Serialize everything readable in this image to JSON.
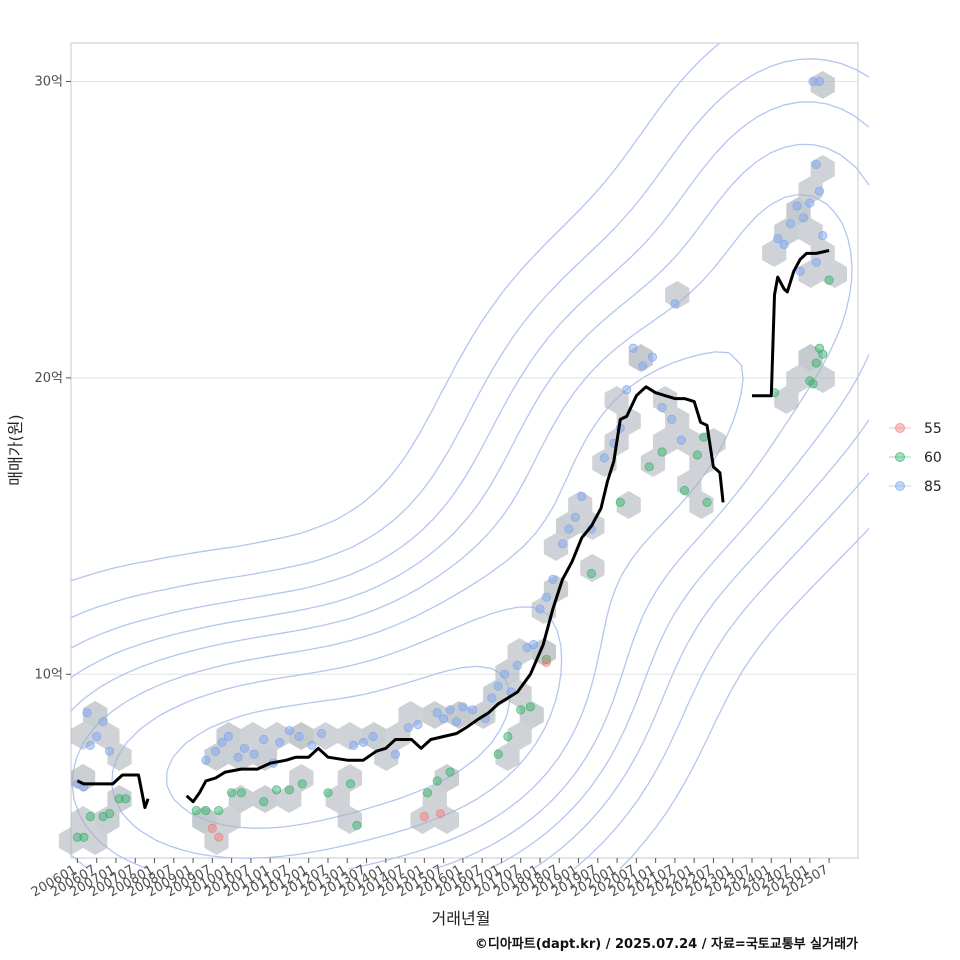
{
  "chart_data": {
    "type": "scatter",
    "xlabel": "거래년월",
    "ylabel": "매매가(원)",
    "caption": "©디아파트(dapt.kr) / 2025.07.24 / 자료=국토교통부 실거래가",
    "x_domain": [
      "2005-11",
      "2026-04"
    ],
    "y_range_eok": [
      3.8,
      31.3
    ],
    "y_ticks": [
      {
        "value": 10,
        "label": "10억"
      },
      {
        "value": 20,
        "label": "20억"
      },
      {
        "value": 30,
        "label": "30억"
      }
    ],
    "x_ticks": [
      "200601",
      "200607",
      "200701",
      "200707",
      "200801",
      "200807",
      "200901",
      "200907",
      "201001",
      "201007",
      "201101",
      "201107",
      "201201",
      "201207",
      "201301",
      "201307",
      "201401",
      "201407",
      "201501",
      "201507",
      "201601",
      "201607",
      "201701",
      "201707",
      "201801",
      "201807",
      "201901",
      "201907",
      "202001",
      "202007",
      "202101",
      "202107",
      "202201",
      "202207",
      "202301",
      "202307",
      "202401",
      "202407",
      "202501",
      "202507"
    ],
    "grid": true,
    "legend_position": "right",
    "legend": [
      {
        "label": "55",
        "color": "#f08080"
      },
      {
        "label": "60",
        "color": "#3cb371"
      },
      {
        "label": "85",
        "color": "#7fa6f0"
      }
    ],
    "series": [
      {
        "name": "85",
        "color": "#7fa6f0",
        "points": [
          [
            "2006-01",
            6.3
          ],
          [
            "2006-03",
            6.2
          ],
          [
            "2006-05",
            7.6
          ],
          [
            "2006-07",
            7.9
          ],
          [
            "2006-09",
            8.4
          ],
          [
            "2006-11",
            7.4
          ],
          [
            "2006-04",
            8.7
          ],
          [
            "2009-05",
            7.1
          ],
          [
            "2009-08",
            7.4
          ],
          [
            "2009-10",
            7.7
          ],
          [
            "2009-12",
            7.9
          ],
          [
            "2010-03",
            7.2
          ],
          [
            "2010-05",
            7.5
          ],
          [
            "2010-08",
            7.3
          ],
          [
            "2010-11",
            7.8
          ],
          [
            "2011-02",
            7.0
          ],
          [
            "2011-04",
            7.7
          ],
          [
            "2011-07",
            8.1
          ],
          [
            "2011-10",
            7.9
          ],
          [
            "2012-02",
            7.6
          ],
          [
            "2012-05",
            8.0
          ],
          [
            "2013-03",
            7.6
          ],
          [
            "2013-06",
            7.7
          ],
          [
            "2013-09",
            7.9
          ],
          [
            "2014-04",
            7.3
          ],
          [
            "2014-08",
            8.2
          ],
          [
            "2014-11",
            8.3
          ],
          [
            "2015-05",
            8.7
          ],
          [
            "2015-07",
            8.5
          ],
          [
            "2015-09",
            8.8
          ],
          [
            "2015-11",
            8.4
          ],
          [
            "2016-01",
            8.9
          ],
          [
            "2016-04",
            8.8
          ],
          [
            "2016-08",
            8.5
          ],
          [
            "2016-10",
            9.2
          ],
          [
            "2016-12",
            9.6
          ],
          [
            "2017-02",
            10.0
          ],
          [
            "2017-04",
            9.4
          ],
          [
            "2017-06",
            10.3
          ],
          [
            "2017-09",
            10.9
          ],
          [
            "2017-11",
            11.0
          ],
          [
            "2018-01",
            12.2
          ],
          [
            "2018-03",
            12.6
          ],
          [
            "2018-05",
            13.2
          ],
          [
            "2018-08",
            14.4
          ],
          [
            "2018-10",
            14.9
          ],
          [
            "2018-12",
            15.3
          ],
          [
            "2019-02",
            16.0
          ],
          [
            "2019-05",
            14.9
          ],
          [
            "2019-09",
            17.3
          ],
          [
            "2019-12",
            17.8
          ],
          [
            "2020-02",
            18.3
          ],
          [
            "2020-04",
            19.6
          ],
          [
            "2020-06",
            21.0
          ],
          [
            "2020-09",
            20.4
          ],
          [
            "2020-12",
            20.7
          ],
          [
            "2021-03",
            19.0
          ],
          [
            "2021-06",
            18.6
          ],
          [
            "2021-09",
            17.9
          ],
          [
            "2021-07",
            22.5
          ],
          [
            "2024-03",
            24.7
          ],
          [
            "2024-05",
            24.5
          ],
          [
            "2024-07",
            25.2
          ],
          [
            "2024-09",
            25.8
          ],
          [
            "2024-11",
            25.4
          ],
          [
            "2025-01",
            25.9
          ],
          [
            "2025-03",
            27.2
          ],
          [
            "2025-04",
            26.3
          ],
          [
            "2025-05",
            24.8
          ],
          [
            "2025-02",
            30.0
          ],
          [
            "2025-04",
            30.0
          ],
          [
            "2024-10",
            23.6
          ],
          [
            "2025-03",
            23.9
          ]
        ]
      },
      {
        "name": "60",
        "color": "#3cb371",
        "points": [
          [
            "2006-01",
            4.5
          ],
          [
            "2006-03",
            4.5
          ],
          [
            "2006-05",
            5.2
          ],
          [
            "2006-09",
            5.2
          ],
          [
            "2006-11",
            5.3
          ],
          [
            "2007-02",
            5.8
          ],
          [
            "2007-04",
            5.8
          ],
          [
            "2009-02",
            5.4
          ],
          [
            "2009-05",
            5.4
          ],
          [
            "2009-09",
            5.4
          ],
          [
            "2010-01",
            6.0
          ],
          [
            "2010-04",
            6.0
          ],
          [
            "2010-11",
            5.7
          ],
          [
            "2011-03",
            6.1
          ],
          [
            "2011-07",
            6.1
          ],
          [
            "2011-11",
            6.3
          ],
          [
            "2012-07",
            6.0
          ],
          [
            "2013-02",
            6.3
          ],
          [
            "2013-04",
            4.9
          ],
          [
            "2015-02",
            6.0
          ],
          [
            "2015-05",
            6.4
          ],
          [
            "2015-09",
            6.7
          ],
          [
            "2016-12",
            7.3
          ],
          [
            "2017-03",
            7.9
          ],
          [
            "2017-07",
            8.8
          ],
          [
            "2017-10",
            8.9
          ],
          [
            "2018-03",
            10.5
          ],
          [
            "2019-05",
            13.4
          ],
          [
            "2020-02",
            15.8
          ],
          [
            "2020-11",
            17.0
          ],
          [
            "2021-03",
            17.5
          ],
          [
            "2021-10",
            16.2
          ],
          [
            "2022-02",
            17.4
          ],
          [
            "2022-04",
            18.0
          ],
          [
            "2022-05",
            15.8
          ],
          [
            "2024-02",
            19.5
          ],
          [
            "2025-01",
            19.9
          ],
          [
            "2025-02",
            19.8
          ],
          [
            "2025-03",
            20.5
          ],
          [
            "2025-04",
            21.0
          ],
          [
            "2025-05",
            20.8
          ],
          [
            "2025-07",
            23.3
          ]
        ]
      },
      {
        "name": "55",
        "color": "#f08080",
        "points": [
          [
            "2009-07",
            4.8
          ],
          [
            "2009-09",
            4.5
          ],
          [
            "2015-01",
            5.2
          ],
          [
            "2015-06",
            5.3
          ],
          [
            "2018-03",
            10.4
          ]
        ]
      }
    ],
    "trend_line": [
      [
        [
          "2006-01",
          6.4
        ],
        [
          "2006-03",
          6.3
        ],
        [
          "2006-06",
          6.3
        ],
        [
          "2006-12",
          6.3
        ],
        [
          "2007-01",
          6.4
        ],
        [
          "2007-03",
          6.6
        ],
        [
          "2007-08",
          6.6
        ],
        [
          "2007-10",
          5.5
        ],
        [
          "2007-11",
          5.8
        ]
      ],
      [
        [
          "2008-11",
          5.9
        ],
        [
          "2009-01",
          5.7
        ],
        [
          "2009-03",
          6.0
        ],
        [
          "2009-05",
          6.4
        ],
        [
          "2009-08",
          6.5
        ],
        [
          "2009-11",
          6.7
        ],
        [
          "2010-04",
          6.8
        ],
        [
          "2010-09",
          6.8
        ],
        [
          "2011-01",
          7.0
        ],
        [
          "2011-06",
          7.1
        ],
        [
          "2011-09",
          7.2
        ],
        [
          "2012-01",
          7.2
        ],
        [
          "2012-04",
          7.5
        ],
        [
          "2012-07",
          7.2
        ],
        [
          "2013-01",
          7.1
        ],
        [
          "2013-06",
          7.1
        ],
        [
          "2013-10",
          7.4
        ],
        [
          "2014-01",
          7.5
        ],
        [
          "2014-04",
          7.8
        ],
        [
          "2014-09",
          7.8
        ],
        [
          "2014-12",
          7.5
        ],
        [
          "2015-03",
          7.8
        ],
        [
          "2015-07",
          7.9
        ],
        [
          "2015-11",
          8.0
        ],
        [
          "2016-02",
          8.2
        ],
        [
          "2016-06",
          8.5
        ],
        [
          "2016-09",
          8.7
        ],
        [
          "2016-12",
          9.0
        ],
        [
          "2017-03",
          9.2
        ],
        [
          "2017-06",
          9.4
        ],
        [
          "2017-10",
          10.0
        ],
        [
          "2018-02",
          11.0
        ],
        [
          "2018-05",
          12.2
        ],
        [
          "2018-08",
          13.2
        ],
        [
          "2018-11",
          13.8
        ],
        [
          "2019-02",
          14.6
        ],
        [
          "2019-05",
          15.0
        ],
        [
          "2019-08",
          15.6
        ],
        [
          "2019-10",
          16.5
        ],
        [
          "2019-12",
          17.2
        ],
        [
          "2020-02",
          18.6
        ],
        [
          "2020-04",
          18.7
        ],
        [
          "2020-07",
          19.4
        ],
        [
          "2020-09",
          19.6
        ],
        [
          "2020-10",
          19.7
        ],
        [
          "2021-01",
          19.5
        ],
        [
          "2021-04",
          19.4
        ],
        [
          "2021-07",
          19.3
        ],
        [
          "2021-10",
          19.3
        ],
        [
          "2022-01",
          19.2
        ],
        [
          "2022-03",
          18.5
        ],
        [
          "2022-05",
          18.4
        ],
        [
          "2022-07",
          17.0
        ],
        [
          "2022-09",
          16.8
        ],
        [
          "2022-10",
          15.8
        ]
      ],
      [
        [
          "2023-07",
          19.4
        ],
        [
          "2023-09",
          19.4
        ],
        [
          "2023-11",
          19.4
        ],
        [
          "2024-01",
          19.4
        ],
        [
          "2024-02",
          22.8
        ],
        [
          "2024-03",
          23.4
        ],
        [
          "2024-05",
          23.0
        ],
        [
          "2024-06",
          22.9
        ],
        [
          "2024-08",
          23.6
        ],
        [
          "2024-10",
          24.0
        ],
        [
          "2024-12",
          24.2
        ],
        [
          "2025-03",
          24.2
        ],
        [
          "2025-07",
          24.3
        ]
      ]
    ]
  }
}
